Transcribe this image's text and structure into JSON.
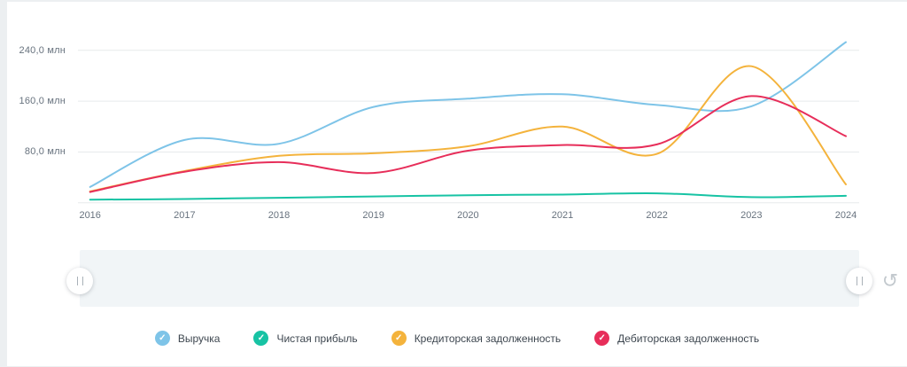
{
  "page": {
    "background": "#eceff1",
    "card_background": "#ffffff"
  },
  "chart_data": {
    "type": "line",
    "title": "",
    "x": [
      2016,
      2017,
      2018,
      2019,
      2020,
      2021,
      2022,
      2023,
      2024
    ],
    "unit": "млн",
    "ylim": [
      0,
      280
    ],
    "grid": true,
    "legend_position": "bottom",
    "grid_color": "#e7eaec",
    "yticks": [
      {
        "value": 240,
        "label": "240,0 млн"
      },
      {
        "value": 160,
        "label": "160,0 млн"
      },
      {
        "value": 80,
        "label": "80,0 млн"
      }
    ],
    "series": [
      {
        "name": "Выручка",
        "color": "#7ec4e8",
        "values": [
          25,
          99,
          93,
          151,
          164,
          171,
          154,
          152,
          253
        ]
      },
      {
        "name": "Чистая прибыль",
        "color": "#17c3a4",
        "values": [
          5,
          6,
          8,
          10,
          12,
          13,
          15,
          9,
          11
        ]
      },
      {
        "name": "Кредиторская задолженность",
        "color": "#f4b33c",
        "values": [
          18,
          50,
          74,
          78,
          89,
          120,
          77,
          215,
          29
        ]
      },
      {
        "name": "Дебиторская задолженность",
        "color": "#e72e5a",
        "values": [
          17,
          49,
          64,
          47,
          82,
          91,
          92,
          168,
          105
        ]
      }
    ]
  },
  "navigator": {
    "left_handle_icon": "pause-icon",
    "right_handle_icon": "pause-icon",
    "reset_icon": "↺"
  },
  "icons": {
    "legend_check": "✓"
  }
}
